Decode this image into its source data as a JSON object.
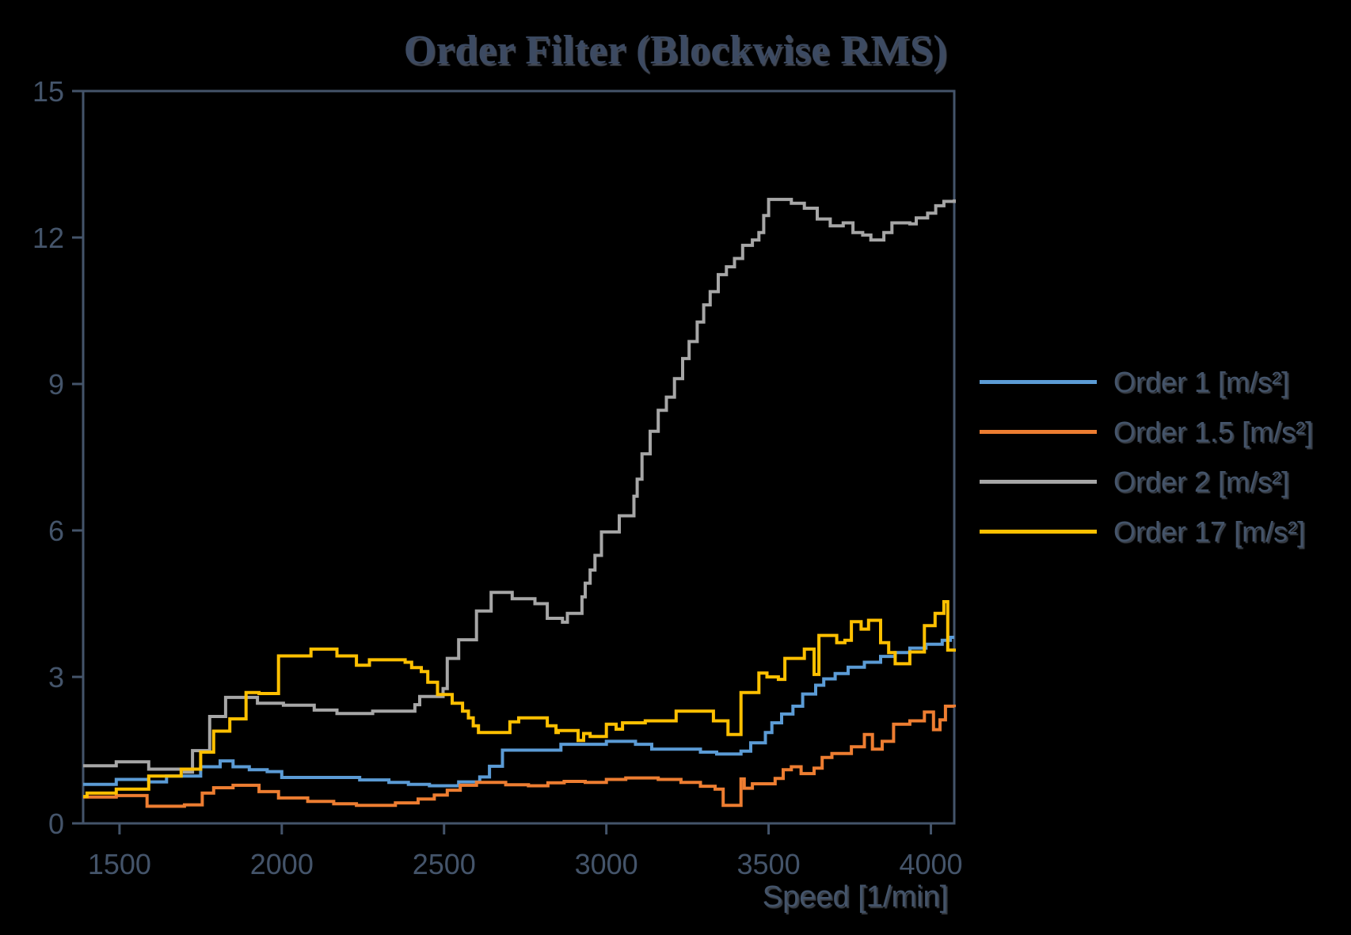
{
  "title": "Order Filter (Blockwise RMS)",
  "x_axis_label": "Speed [1/min]",
  "colors": {
    "background": "#000000",
    "axis": "#44546A",
    "tick_text": "#44546A",
    "title_text": "#3C4A62",
    "series_blue": "#5B9BD5",
    "series_orange": "#ED7D31",
    "series_gray": "#A6A6A6",
    "series_yellow": "#FFC000"
  },
  "chart_data": {
    "type": "line",
    "step": true,
    "title": "Order Filter (Blockwise RMS)",
    "xlabel": "Speed [1/min]",
    "ylabel": "",
    "xlim": [
      1388,
      4072
    ],
    "ylim": [
      0,
      15
    ],
    "x_ticks": [
      1500,
      2000,
      2500,
      3000,
      3500,
      4000
    ],
    "y_ticks": [
      0,
      3,
      6,
      9,
      12,
      15
    ],
    "grid": false,
    "legend_position": "right",
    "series": [
      {
        "name": "Order 1 [m/s²]",
        "color": "#5B9BD5",
        "points": [
          [
            1388,
            0.8
          ],
          [
            1490,
            0.9
          ],
          [
            1590,
            0.85
          ],
          [
            1645,
            0.97
          ],
          [
            1750,
            1.16
          ],
          [
            1810,
            1.28
          ],
          [
            1850,
            1.16
          ],
          [
            1900,
            1.1
          ],
          [
            1955,
            1.06
          ],
          [
            2000,
            0.94
          ],
          [
            2240,
            0.89
          ],
          [
            2330,
            0.84
          ],
          [
            2390,
            0.8
          ],
          [
            2455,
            0.77
          ],
          [
            2545,
            0.85
          ],
          [
            2610,
            0.95
          ],
          [
            2640,
            1.17
          ],
          [
            2680,
            1.5
          ],
          [
            2860,
            1.62
          ],
          [
            3000,
            1.68
          ],
          [
            3090,
            1.62
          ],
          [
            3140,
            1.52
          ],
          [
            3290,
            1.46
          ],
          [
            3340,
            1.42
          ],
          [
            3415,
            1.48
          ],
          [
            3445,
            1.65
          ],
          [
            3490,
            1.86
          ],
          [
            3510,
            2.06
          ],
          [
            3540,
            2.24
          ],
          [
            3575,
            2.4
          ],
          [
            3605,
            2.65
          ],
          [
            3645,
            2.83
          ],
          [
            3670,
            2.96
          ],
          [
            3705,
            3.07
          ],
          [
            3745,
            3.2
          ],
          [
            3795,
            3.3
          ],
          [
            3845,
            3.42
          ],
          [
            3890,
            3.5
          ],
          [
            3935,
            3.59
          ],
          [
            3985,
            3.67
          ],
          [
            4035,
            3.75
          ],
          [
            4060,
            3.81
          ],
          [
            4072,
            3.81
          ]
        ]
      },
      {
        "name": "Order 1.5 [m/s²]",
        "color": "#ED7D31",
        "points": [
          [
            1388,
            0.54
          ],
          [
            1490,
            0.57
          ],
          [
            1585,
            0.35
          ],
          [
            1700,
            0.38
          ],
          [
            1755,
            0.62
          ],
          [
            1790,
            0.73
          ],
          [
            1850,
            0.78
          ],
          [
            1930,
            0.65
          ],
          [
            1990,
            0.52
          ],
          [
            2080,
            0.45
          ],
          [
            2160,
            0.4
          ],
          [
            2230,
            0.37
          ],
          [
            2350,
            0.42
          ],
          [
            2420,
            0.5
          ],
          [
            2470,
            0.58
          ],
          [
            2510,
            0.68
          ],
          [
            2550,
            0.78
          ],
          [
            2600,
            0.84
          ],
          [
            2690,
            0.79
          ],
          [
            2760,
            0.77
          ],
          [
            2820,
            0.83
          ],
          [
            2870,
            0.86
          ],
          [
            2935,
            0.84
          ],
          [
            3000,
            0.9
          ],
          [
            3060,
            0.93
          ],
          [
            3160,
            0.9
          ],
          [
            3230,
            0.84
          ],
          [
            3290,
            0.76
          ],
          [
            3335,
            0.7
          ],
          [
            3360,
            0.37
          ],
          [
            3415,
            0.91
          ],
          [
            3425,
            0.72
          ],
          [
            3450,
            0.81
          ],
          [
            3520,
            0.92
          ],
          [
            3545,
            1.1
          ],
          [
            3570,
            1.16
          ],
          [
            3600,
            1.02
          ],
          [
            3640,
            1.13
          ],
          [
            3665,
            1.35
          ],
          [
            3695,
            1.43
          ],
          [
            3755,
            1.57
          ],
          [
            3795,
            1.82
          ],
          [
            3820,
            1.52
          ],
          [
            3850,
            1.68
          ],
          [
            3885,
            2.03
          ],
          [
            3935,
            2.1
          ],
          [
            3980,
            2.28
          ],
          [
            4008,
            1.92
          ],
          [
            4028,
            2.12
          ],
          [
            4045,
            2.4
          ],
          [
            4072,
            2.38
          ]
        ]
      },
      {
        "name": "Order 2 [m/s²]",
        "color": "#A6A6A6",
        "points": [
          [
            1388,
            1.18
          ],
          [
            1490,
            1.26
          ],
          [
            1590,
            1.11
          ],
          [
            1700,
            1.05
          ],
          [
            1725,
            1.49
          ],
          [
            1778,
            2.19
          ],
          [
            1827,
            2.58
          ],
          [
            1925,
            2.46
          ],
          [
            2005,
            2.42
          ],
          [
            2100,
            2.32
          ],
          [
            2170,
            2.25
          ],
          [
            2280,
            2.3
          ],
          [
            2410,
            2.43
          ],
          [
            2425,
            2.6
          ],
          [
            2497,
            2.76
          ],
          [
            2510,
            3.38
          ],
          [
            2545,
            3.76
          ],
          [
            2600,
            4.35
          ],
          [
            2645,
            4.73
          ],
          [
            2710,
            4.6
          ],
          [
            2780,
            4.5
          ],
          [
            2818,
            4.2
          ],
          [
            2865,
            4.12
          ],
          [
            2880,
            4.3
          ],
          [
            2925,
            4.64
          ],
          [
            2935,
            4.92
          ],
          [
            2950,
            5.19
          ],
          [
            2965,
            5.49
          ],
          [
            2985,
            5.97
          ],
          [
            3040,
            6.3
          ],
          [
            3085,
            6.7
          ],
          [
            3095,
            7.05
          ],
          [
            3110,
            7.57
          ],
          [
            3135,
            8.03
          ],
          [
            3160,
            8.46
          ],
          [
            3185,
            8.73
          ],
          [
            3210,
            9.11
          ],
          [
            3235,
            9.52
          ],
          [
            3255,
            9.87
          ],
          [
            3280,
            10.27
          ],
          [
            3300,
            10.62
          ],
          [
            3320,
            10.89
          ],
          [
            3345,
            11.24
          ],
          [
            3370,
            11.4
          ],
          [
            3395,
            11.57
          ],
          [
            3420,
            11.84
          ],
          [
            3450,
            11.95
          ],
          [
            3470,
            12.1
          ],
          [
            3485,
            12.45
          ],
          [
            3500,
            12.78
          ],
          [
            3570,
            12.7
          ],
          [
            3610,
            12.6
          ],
          [
            3650,
            12.38
          ],
          [
            3690,
            12.24
          ],
          [
            3730,
            12.3
          ],
          [
            3760,
            12.1
          ],
          [
            3790,
            12.05
          ],
          [
            3815,
            11.95
          ],
          [
            3855,
            12.1
          ],
          [
            3880,
            12.3
          ],
          [
            3935,
            12.28
          ],
          [
            3955,
            12.4
          ],
          [
            3990,
            12.5
          ],
          [
            4015,
            12.65
          ],
          [
            4040,
            12.74
          ],
          [
            4072,
            12.78
          ]
        ]
      },
      {
        "name": "Order 17 [m/s²]",
        "color": "#FFC000",
        "points": [
          [
            1388,
            0.55
          ],
          [
            1400,
            0.62
          ],
          [
            1490,
            0.7
          ],
          [
            1590,
            0.97
          ],
          [
            1690,
            1.11
          ],
          [
            1750,
            1.46
          ],
          [
            1790,
            1.89
          ],
          [
            1840,
            2.14
          ],
          [
            1890,
            2.68
          ],
          [
            1930,
            2.66
          ],
          [
            1990,
            3.43
          ],
          [
            2090,
            3.57
          ],
          [
            2170,
            3.43
          ],
          [
            2230,
            3.24
          ],
          [
            2270,
            3.35
          ],
          [
            2380,
            3.3
          ],
          [
            2400,
            3.19
          ],
          [
            2430,
            3.11
          ],
          [
            2450,
            2.89
          ],
          [
            2480,
            2.64
          ],
          [
            2525,
            2.46
          ],
          [
            2557,
            2.3
          ],
          [
            2575,
            2.16
          ],
          [
            2590,
            2.0
          ],
          [
            2606,
            1.86
          ],
          [
            2703,
            2.08
          ],
          [
            2730,
            2.16
          ],
          [
            2818,
            2.0
          ],
          [
            2845,
            1.86
          ],
          [
            2852,
            1.9
          ],
          [
            2913,
            1.7
          ],
          [
            2930,
            1.84
          ],
          [
            2950,
            1.78
          ],
          [
            3000,
            2.03
          ],
          [
            3030,
            1.93
          ],
          [
            3050,
            2.06
          ],
          [
            3120,
            2.1
          ],
          [
            3215,
            2.3
          ],
          [
            3330,
            2.1
          ],
          [
            3375,
            1.82
          ],
          [
            3415,
            2.68
          ],
          [
            3470,
            3.08
          ],
          [
            3495,
            3.0
          ],
          [
            3530,
            2.95
          ],
          [
            3550,
            3.38
          ],
          [
            3610,
            3.57
          ],
          [
            3640,
            3.05
          ],
          [
            3655,
            3.85
          ],
          [
            3710,
            3.7
          ],
          [
            3735,
            3.75
          ],
          [
            3755,
            4.13
          ],
          [
            3785,
            3.98
          ],
          [
            3808,
            4.16
          ],
          [
            3845,
            3.7
          ],
          [
            3870,
            3.5
          ],
          [
            3890,
            3.27
          ],
          [
            3935,
            3.51
          ],
          [
            3980,
            4.05
          ],
          [
            4013,
            4.3
          ],
          [
            4040,
            4.54
          ],
          [
            4052,
            3.55
          ],
          [
            4072,
            3.58
          ]
        ]
      }
    ]
  }
}
